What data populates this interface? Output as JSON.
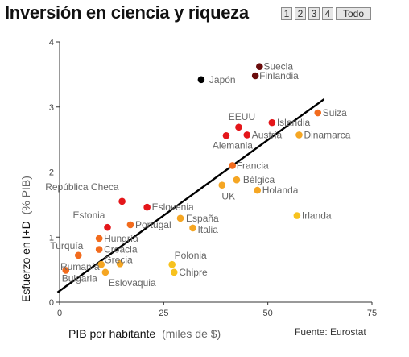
{
  "title": "Inversión en ciencia y riqueza",
  "pager": {
    "pages": [
      "1",
      "2",
      "3",
      "4"
    ],
    "all_label": "Todo"
  },
  "source": "Fuente:  Eurostat",
  "chart_data": {
    "type": "scatter",
    "xlabel": "PIB por habitante",
    "xlabel_unit": "(miles de $)",
    "ylabel": "Esfuerzo en I+D",
    "ylabel_unit": "(% PIB)",
    "xlim": [
      0,
      75
    ],
    "ylim": [
      0,
      4
    ],
    "x_ticks": [
      0,
      25,
      50,
      75
    ],
    "y_ticks": [
      0,
      1,
      2,
      3,
      4
    ],
    "trend_line": {
      "x": [
        -0.5,
        63.5
      ],
      "y": [
        0.15,
        3.12
      ]
    },
    "colors": {
      "black": "#000000",
      "dark_red": "#6b0d0d",
      "red": "#e4161a",
      "orange": "#f26b1d",
      "amber": "#f5a623",
      "yellow": "#f7c21e"
    },
    "points": [
      {
        "label": "Japón",
        "x": 34,
        "y": 3.42,
        "color": "black",
        "label_color": "#555555"
      },
      {
        "label": "Suecia",
        "x": 48,
        "y": 3.62,
        "color": "dark_red"
      },
      {
        "label": "Finlandia",
        "x": 47,
        "y": 3.48,
        "color": "dark_red"
      },
      {
        "label": "EEUU",
        "x": 43,
        "y": 2.69,
        "color": "red"
      },
      {
        "label": "Islandia",
        "x": 51,
        "y": 2.76,
        "color": "red"
      },
      {
        "label": "Austria",
        "x": 45,
        "y": 2.57,
        "color": "red"
      },
      {
        "label": "Alemania",
        "x": 40,
        "y": 2.56,
        "color": "red"
      },
      {
        "label": "Suiza",
        "x": 62,
        "y": 2.91,
        "color": "orange"
      },
      {
        "label": "Dinamarca",
        "x": 57.5,
        "y": 2.57,
        "color": "amber"
      },
      {
        "label": "Francia",
        "x": 41.5,
        "y": 2.1,
        "color": "orange"
      },
      {
        "label": "Bélgica",
        "x": 42.5,
        "y": 1.88,
        "color": "amber"
      },
      {
        "label": "UK",
        "x": 39,
        "y": 1.8,
        "color": "amber"
      },
      {
        "label": "Holanda",
        "x": 47.5,
        "y": 1.72,
        "color": "amber"
      },
      {
        "label": "República Checa",
        "x": 15,
        "y": 1.55,
        "color": "red"
      },
      {
        "label": "Eslovenia",
        "x": 21,
        "y": 1.46,
        "color": "red"
      },
      {
        "label": "Estonia",
        "x": 11.5,
        "y": 1.15,
        "color": "red"
      },
      {
        "label": "Portugal",
        "x": 17,
        "y": 1.19,
        "color": "orange"
      },
      {
        "label": "España",
        "x": 29,
        "y": 1.29,
        "color": "amber",
        "label_color": "#222222"
      },
      {
        "label": "Italia",
        "x": 32,
        "y": 1.14,
        "color": "amber"
      },
      {
        "label": "Irlanda",
        "x": 57,
        "y": 1.33,
        "color": "yellow"
      },
      {
        "label": "Hungría",
        "x": 9.5,
        "y": 0.98,
        "color": "orange"
      },
      {
        "label": "Croacia",
        "x": 9.5,
        "y": 0.81,
        "color": "orange"
      },
      {
        "label": "Turquía",
        "x": 4.5,
        "y": 0.72,
        "color": "orange"
      },
      {
        "label": "Grecia",
        "x": 14.5,
        "y": 0.59,
        "color": "amber"
      },
      {
        "label": "Rumanía",
        "x": 10,
        "y": 0.58,
        "color": "amber"
      },
      {
        "label": "Eslovaquia",
        "x": 11,
        "y": 0.46,
        "color": "amber"
      },
      {
        "label": "Bulgaria",
        "x": 1.5,
        "y": 0.49,
        "color": "orange"
      },
      {
        "label": "Polonia",
        "x": 27,
        "y": 0.58,
        "color": "yellow"
      },
      {
        "label": "Chipre",
        "x": 27.5,
        "y": 0.46,
        "color": "yellow"
      }
    ]
  }
}
